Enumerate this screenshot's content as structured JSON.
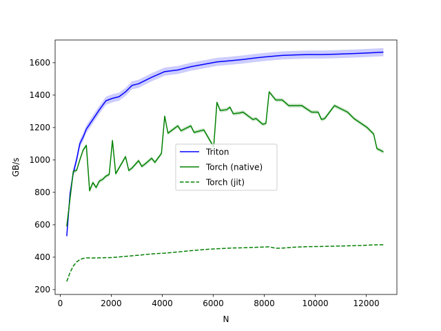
{
  "chart_data": {
    "type": "line",
    "title": "",
    "xlabel": "N",
    "ylabel": "GB/s",
    "xlim": [
      -200,
      13200
    ],
    "ylim": [
      170,
      1740
    ],
    "grid": false,
    "legend_position": "center",
    "xticks": [
      0,
      2000,
      4000,
      6000,
      8000,
      10000,
      12000
    ],
    "yticks": [
      200,
      400,
      600,
      800,
      1000,
      1200,
      1400,
      1600
    ],
    "series": [
      {
        "name": "Triton",
        "color": "#0000ff",
        "style": "solid",
        "band": 25,
        "x": [
          256,
          384,
          512,
          640,
          768,
          896,
          1024,
          1280,
          1536,
          1792,
          2048,
          2304,
          2560,
          2816,
          3072,
          3584,
          4096,
          4608,
          5120,
          5632,
          6144,
          6656,
          7168,
          7680,
          8192,
          8704,
          9216,
          9728,
          10240,
          10752,
          11264,
          11776,
          12288,
          12672
        ],
        "values": [
          530,
          790,
          920,
          1000,
          1100,
          1140,
          1190,
          1250,
          1310,
          1365,
          1380,
          1390,
          1420,
          1460,
          1470,
          1510,
          1545,
          1555,
          1575,
          1590,
          1605,
          1612,
          1620,
          1630,
          1638,
          1645,
          1648,
          1650,
          1650,
          1652,
          1655,
          1658,
          1662,
          1665
        ]
      },
      {
        "name": "Torch (native)",
        "color": "#008000",
        "style": "solid",
        "band": 12,
        "x": [
          256,
          384,
          512,
          640,
          768,
          896,
          1024,
          1152,
          1280,
          1408,
          1536,
          1664,
          1792,
          1920,
          2048,
          2176,
          2304,
          2560,
          2688,
          2816,
          3072,
          3200,
          3328,
          3584,
          3712,
          3968,
          4096,
          4224,
          4608,
          4736,
          5120,
          5248,
          5632,
          6016,
          6144,
          6272,
          6528,
          6656,
          6784,
          7040,
          7168,
          7552,
          7680,
          7936,
          8064,
          8192,
          8448,
          8704,
          8960,
          9472,
          9856,
          10112,
          10240,
          10368,
          10752,
          11136,
          11264,
          11520,
          12032,
          12160,
          12288,
          12416,
          12672
        ],
        "values": [
          590,
          760,
          930,
          935,
          1000,
          1060,
          1090,
          810,
          860,
          830,
          870,
          880,
          900,
          910,
          1120,
          915,
          950,
          1020,
          935,
          950,
          995,
          960,
          975,
          1010,
          985,
          1040,
          1270,
          1165,
          1210,
          1180,
          1210,
          1170,
          1185,
          1080,
          1355,
          1305,
          1310,
          1325,
          1285,
          1290,
          1295,
          1250,
          1255,
          1220,
          1225,
          1420,
          1370,
          1370,
          1335,
          1335,
          1295,
          1295,
          1250,
          1255,
          1335,
          1305,
          1295,
          1255,
          1200,
          1180,
          1160,
          1070,
          1050
        ]
      },
      {
        "name": "Torch (jit)",
        "color": "#008000",
        "style": "dashed",
        "band": 0,
        "x": [
          256,
          384,
          512,
          640,
          768,
          896,
          1024,
          1280,
          1536,
          1792,
          2048,
          2560,
          3072,
          3584,
          4096,
          4608,
          5120,
          5632,
          6144,
          6656,
          7168,
          7680,
          8192,
          8448,
          8704,
          9216,
          9728,
          10240,
          10752,
          11264,
          11776,
          12288,
          12672
        ],
        "values": [
          250,
          305,
          345,
          370,
          385,
          392,
          396,
          395,
          396,
          397,
          398,
          405,
          412,
          420,
          425,
          432,
          440,
          447,
          452,
          456,
          458,
          461,
          464,
          455,
          456,
          462,
          465,
          466,
          468,
          470,
          472,
          476,
          477
        ]
      }
    ]
  }
}
